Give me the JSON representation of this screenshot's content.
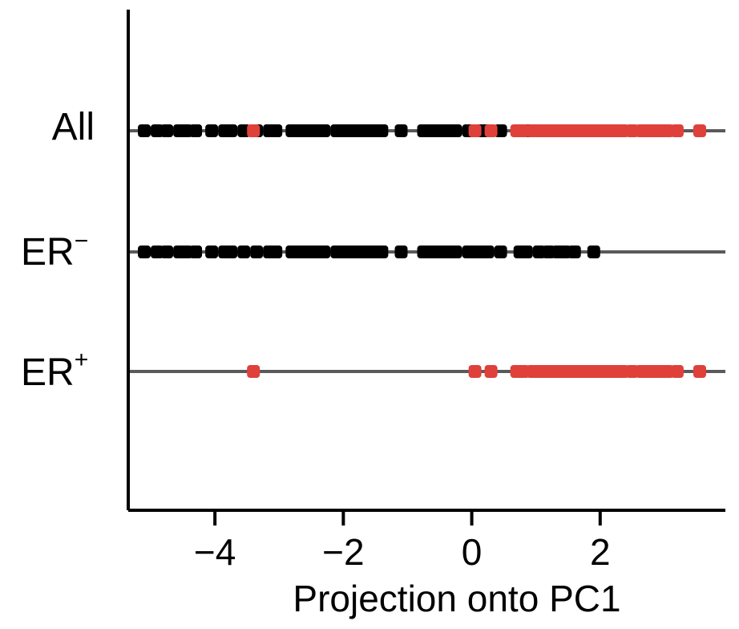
{
  "chart_data": {
    "type": "scatter",
    "title": "",
    "xlabel": "Projection onto PC1",
    "ylabel": "",
    "xlim": [
      -5.35,
      3.95
    ],
    "xticks": [
      -4,
      -2,
      0,
      2
    ],
    "xtick_labels": [
      "−4",
      "−2",
      "0",
      "2"
    ],
    "grid": false,
    "colors": {
      "er_negative": "#000000",
      "er_positive": "#e0403a",
      "strip_line": "#5a5a5a",
      "axis": "#000000"
    },
    "rows": [
      {
        "label": "All",
        "label_sup": ""
      },
      {
        "label": "ER",
        "label_sup": "−"
      },
      {
        "label": "ER",
        "label_sup": "+"
      }
    ],
    "series": [
      {
        "name": "ER−",
        "color": "#000000",
        "rows": [
          "All",
          "ER−"
        ],
        "x": [
          -5.1,
          -4.9,
          -4.75,
          -4.55,
          -4.45,
          -4.3,
          -4.05,
          -3.85,
          -3.75,
          -3.55,
          -3.35,
          -3.15,
          -3.1,
          -3.05,
          -2.8,
          -2.7,
          -2.6,
          -2.5,
          -2.45,
          -2.4,
          -2.3,
          -2.1,
          -2.0,
          -1.9,
          -1.8,
          -1.7,
          -1.6,
          -1.5,
          -1.4,
          -1.1,
          -0.75,
          -0.7,
          -0.6,
          -0.5,
          -0.45,
          -0.4,
          -0.3,
          -0.25,
          -0.05,
          0.05,
          0.15,
          0.25,
          0.45,
          0.75,
          0.85,
          1.05,
          1.2,
          1.35,
          1.45,
          1.6,
          1.9
        ]
      },
      {
        "name": "ER+",
        "color": "#e0403a",
        "rows": [
          "All",
          "ER+"
        ],
        "x": [
          -3.4,
          0.05,
          0.3,
          0.7,
          0.8,
          0.95,
          1.05,
          1.15,
          1.25,
          1.3,
          1.4,
          1.5,
          1.55,
          1.6,
          1.65,
          1.7,
          1.75,
          1.8,
          1.9,
          2.0,
          2.1,
          2.2,
          2.25,
          2.35,
          2.5,
          2.65,
          2.75,
          2.85,
          2.95,
          3.05,
          3.2,
          3.55
        ]
      }
    ]
  }
}
